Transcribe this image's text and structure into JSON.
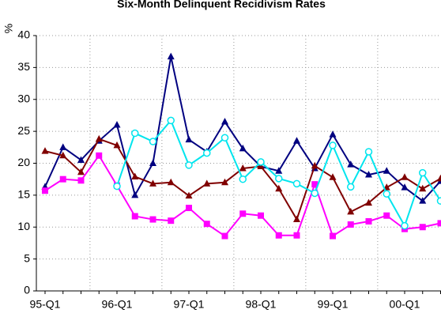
{
  "chart_data": {
    "type": "line",
    "title": "Six-Month Delinquent Recidivism Rates",
    "y_label": "%",
    "categories": [
      "95-Q1",
      null,
      null,
      null,
      "96-Q1",
      null,
      null,
      null,
      "97-Q1",
      null,
      null,
      null,
      "98-Q1",
      null,
      null,
      null,
      "99-Q1",
      null,
      null,
      null,
      "00-Q1",
      null,
      null
    ],
    "series": [
      {
        "color": "#000080",
        "marker": "triangle",
        "values": [
          16.3,
          22.5,
          20.5,
          23.5,
          26,
          15,
          20,
          36.7,
          23.7,
          21.8,
          26.5,
          22.3,
          19.5,
          18.8,
          23.5,
          19.2,
          24.5,
          19.8,
          18.2,
          18.8,
          16.2,
          14.1,
          17.2
        ]
      },
      {
        "color": "#800000",
        "marker": "triangle",
        "values": [
          21.9,
          21.2,
          18.6,
          23.8,
          22.8,
          17.9,
          16.8,
          17,
          14.9,
          16.8,
          17,
          19.2,
          19.5,
          16,
          11.2,
          19.6,
          17.8,
          12.4,
          13.8,
          16.2,
          17.8,
          16,
          17.6
        ]
      },
      {
        "color": "#ff00ff",
        "marker": "square",
        "values": [
          15.7,
          17.5,
          17.3,
          21.2,
          16.5,
          11.7,
          11.2,
          11,
          13,
          10.5,
          8.6,
          12.1,
          11.8,
          8.7,
          8.7,
          16.7,
          8.6,
          10.4,
          10.9,
          11.8,
          9.7,
          10,
          10.6
        ]
      },
      {
        "color": "#00e5ee",
        "marker": "circle",
        "values": [
          null,
          null,
          null,
          null,
          16.4,
          24.7,
          23.4,
          26.7,
          19.7,
          21.6,
          24,
          17.5,
          20.2,
          17.6,
          16.8,
          15.3,
          22.8,
          16.3,
          21.8,
          15.2,
          10.2,
          18.5,
          14.1
        ]
      }
    ],
    "ylim": [
      0,
      40
    ],
    "yticks": [
      0,
      5,
      10,
      15,
      20,
      25,
      30,
      35,
      40
    ],
    "grid": true
  }
}
